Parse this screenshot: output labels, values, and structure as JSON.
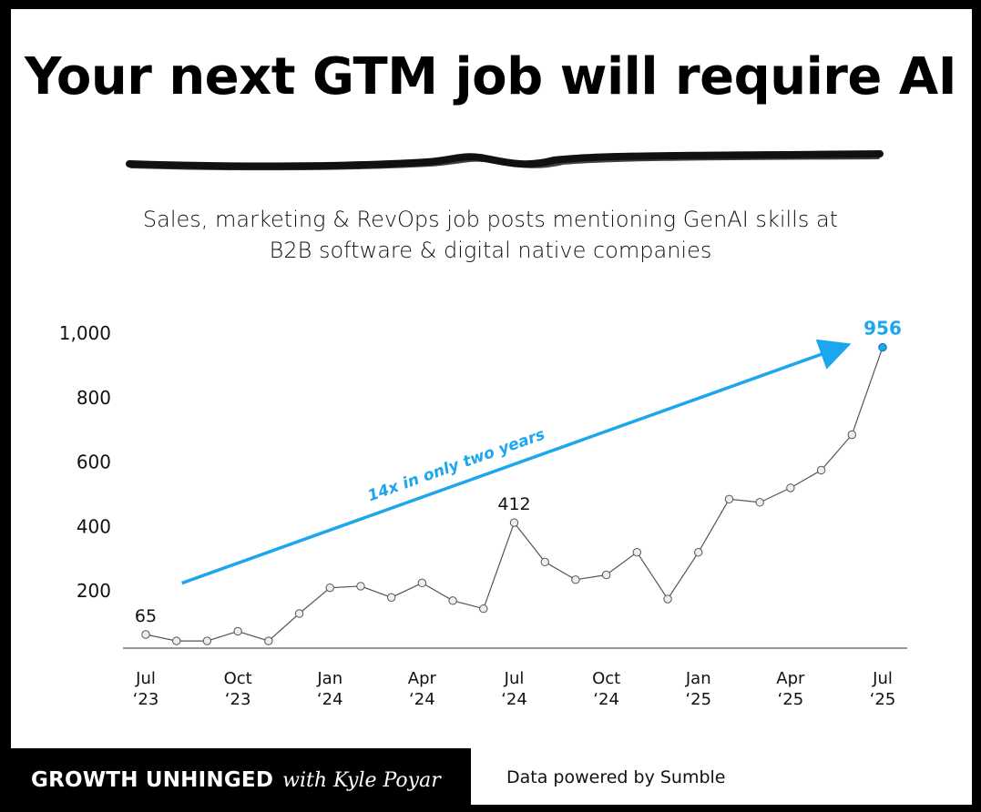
{
  "title": "Your next GTM job will require AI",
  "subtitle": {
    "line1": "Sales, marketing & RevOps job posts mentioning GenAI skills at",
    "line2": "B2B software & digital native companies"
  },
  "colors": {
    "accent": "#1ba6ee",
    "line": "#555555",
    "marker_fill": "#eeeeee",
    "background": "#ffffff",
    "frame": "#000000"
  },
  "chart_data": {
    "type": "line",
    "title": "",
    "xlabel": "",
    "ylabel": "",
    "ylim": [
      0,
      1000
    ],
    "yticks": [
      "200",
      "400",
      "600",
      "800",
      "1,000"
    ],
    "x": [
      "Jul '23",
      "Aug '23",
      "Sep '23",
      "Oct '23",
      "Nov '23",
      "Dec '23",
      "Jan '24",
      "Feb '24",
      "Mar '24",
      "Apr '24",
      "May '24",
      "Jun '24",
      "Jul '24",
      "Aug '24",
      "Sep '24",
      "Oct '24",
      "Nov '24",
      "Dec '24",
      "Jan '25",
      "Feb '25",
      "Mar '25",
      "Apr '25",
      "May '25",
      "Jun '25",
      "Jul '25"
    ],
    "values": [
      65,
      45,
      45,
      75,
      45,
      130,
      210,
      215,
      180,
      225,
      170,
      145,
      412,
      290,
      235,
      250,
      320,
      175,
      320,
      485,
      475,
      520,
      575,
      685,
      956
    ],
    "x_tick_labels": [
      {
        "index": 0,
        "month": "Jul",
        "year": "‘23"
      },
      {
        "index": 3,
        "month": "Oct",
        "year": "‘23"
      },
      {
        "index": 6,
        "month": "Jan",
        "year": "‘24"
      },
      {
        "index": 9,
        "month": "Apr",
        "year": "‘24"
      },
      {
        "index": 12,
        "month": "Jul",
        "year": "‘24"
      },
      {
        "index": 15,
        "month": "Oct",
        "year": "‘24"
      },
      {
        "index": 18,
        "month": "Jan",
        "year": "‘25"
      },
      {
        "index": 21,
        "month": "Apr",
        "year": "‘25"
      },
      {
        "index": 24,
        "month": "Jul",
        "year": "‘25"
      }
    ],
    "data_labels": [
      {
        "index": 0,
        "text": "65"
      },
      {
        "index": 12,
        "text": "412"
      },
      {
        "index": 24,
        "text": "956",
        "highlight": true
      }
    ],
    "annotation": {
      "text": "14x in only two years",
      "from_index": 1,
      "from_value": 230,
      "to_index": 23,
      "to_value": 960
    }
  },
  "footer": {
    "brand": "GROWTH UNHINGED",
    "brand_with": "with Kyle Poyar",
    "source": "Data powered by Sumble"
  }
}
